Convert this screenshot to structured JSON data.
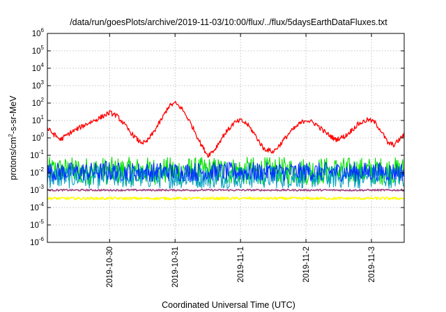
{
  "chart_data": {
    "type": "line",
    "title": "/data/run/goesPlots/archive/2019-11-03/10:00/flux/../flux/5daysEarthDataFluxes.txt",
    "xlabel": "Coordinated Universal Time (UTC)",
    "ylabel": {
      "prefix": "protons/cm",
      "sup": "2",
      "suffix": "-s-sr-MeV"
    },
    "yscale": "log",
    "ylim_exponent": [
      -6,
      6
    ],
    "y_tick_base": "10",
    "y_tick_exponents": [
      "-6",
      "-5",
      "-4",
      "-3",
      "-2",
      "-1",
      "0",
      "1",
      "2",
      "3",
      "4",
      "5",
      "6"
    ],
    "xlim_days": [
      0,
      5.45
    ],
    "x_ticks": [
      {
        "label": "2019-10-30",
        "day": 0.95
      },
      {
        "label": "2019-10-31",
        "day": 1.95
      },
      {
        "label": "2019-11-1",
        "day": 2.95
      },
      {
        "label": "2019-11-2",
        "day": 3.95
      },
      {
        "label": "2019-11-3",
        "day": 4.95
      }
    ],
    "grid": true,
    "series": [
      {
        "color": "#ff0000",
        "log10_x_y": [
          [
            0,
            0.55
          ],
          [
            0.1,
            0.2
          ],
          [
            0.2,
            -0.1
          ],
          [
            0.35,
            0.3
          ],
          [
            0.6,
            0.8
          ],
          [
            0.8,
            1.15
          ],
          [
            0.95,
            1.45
          ],
          [
            1.05,
            1.3
          ],
          [
            1.15,
            0.9
          ],
          [
            1.25,
            0.4
          ],
          [
            1.4,
            -0.2
          ],
          [
            1.5,
            -0.3
          ],
          [
            1.6,
            0.2
          ],
          [
            1.75,
            1.1
          ],
          [
            1.85,
            1.8
          ],
          [
            1.95,
            2.0
          ],
          [
            2.05,
            1.7
          ],
          [
            2.15,
            1.1
          ],
          [
            2.25,
            0.4
          ],
          [
            2.35,
            -0.4
          ],
          [
            2.45,
            -1.0
          ],
          [
            2.55,
            -0.7
          ],
          [
            2.7,
            0.2
          ],
          [
            2.85,
            0.85
          ],
          [
            2.95,
            1.0
          ],
          [
            3.05,
            0.8
          ],
          [
            3.15,
            0.3
          ],
          [
            3.3,
            -0.6
          ],
          [
            3.45,
            -0.8
          ],
          [
            3.55,
            -0.4
          ],
          [
            3.7,
            0.3
          ],
          [
            3.85,
            0.8
          ],
          [
            3.95,
            1.05
          ],
          [
            4.1,
            0.8
          ],
          [
            4.25,
            0.3
          ],
          [
            4.4,
            -0.1
          ],
          [
            4.55,
            0.1
          ],
          [
            4.75,
            0.8
          ],
          [
            4.9,
            1.05
          ],
          [
            5.0,
            0.9
          ],
          [
            5.1,
            0.4
          ],
          [
            5.2,
            -0.3
          ],
          [
            5.3,
            -0.4
          ],
          [
            5.45,
            0.2
          ]
        ]
      },
      {
        "color": "#00e000",
        "log10_range": [
          -2.7,
          -1.1
        ]
      },
      {
        "color": "#00a0c0",
        "log10_range": [
          -2.9,
          -1.6
        ]
      },
      {
        "color": "#0030ff",
        "log10_range": [
          -2.5,
          -1.4
        ]
      },
      {
        "color": "#a04080",
        "log10_range": [
          -3.05,
          -2.95
        ]
      },
      {
        "color": "#ffff00",
        "log10_range": [
          -3.55,
          -3.4
        ]
      }
    ]
  }
}
